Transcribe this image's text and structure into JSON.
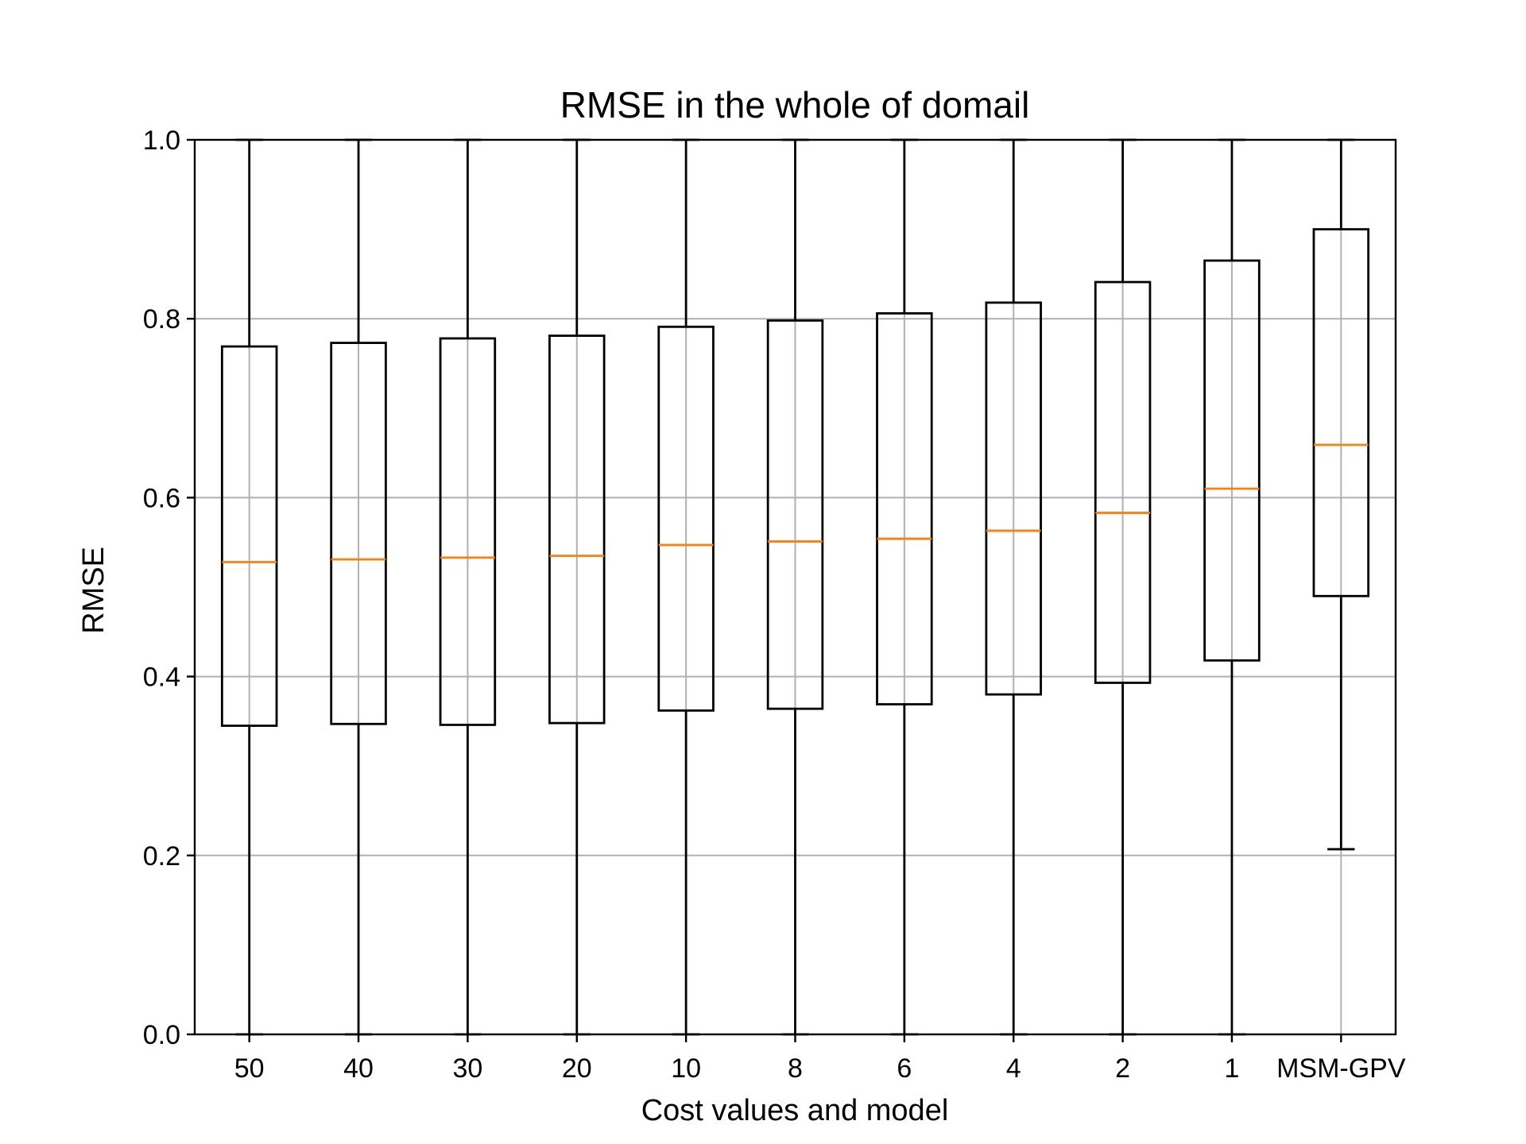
{
  "chart_data": {
    "type": "box",
    "title": "RMSE in the whole of domail",
    "xlabel": "Cost values and model",
    "ylabel": "RMSE",
    "ylim": [
      0.0,
      1.0
    ],
    "yticks": [
      "0.0",
      "0.2",
      "0.4",
      "0.6",
      "0.8",
      "1.0"
    ],
    "grid": true,
    "categories": [
      "50",
      "40",
      "30",
      "20",
      "10",
      "8",
      "6",
      "4",
      "2",
      "1",
      "MSM-GPV"
    ],
    "boxes": [
      {
        "label": "50",
        "whislo": 0.0,
        "q1": 0.345,
        "median": 0.528,
        "q3": 0.769,
        "whishi": 1.0
      },
      {
        "label": "40",
        "whislo": 0.0,
        "q1": 0.347,
        "median": 0.531,
        "q3": 0.773,
        "whishi": 1.0
      },
      {
        "label": "30",
        "whislo": 0.0,
        "q1": 0.346,
        "median": 0.533,
        "q3": 0.778,
        "whishi": 1.0
      },
      {
        "label": "20",
        "whislo": 0.0,
        "q1": 0.348,
        "median": 0.535,
        "q3": 0.781,
        "whishi": 1.0
      },
      {
        "label": "10",
        "whislo": 0.0,
        "q1": 0.362,
        "median": 0.547,
        "q3": 0.791,
        "whishi": 1.0
      },
      {
        "label": "8",
        "whislo": 0.0,
        "q1": 0.364,
        "median": 0.551,
        "q3": 0.798,
        "whishi": 1.0
      },
      {
        "label": "6",
        "whislo": 0.0,
        "q1": 0.369,
        "median": 0.554,
        "q3": 0.806,
        "whishi": 1.0
      },
      {
        "label": "4",
        "whislo": 0.0,
        "q1": 0.38,
        "median": 0.563,
        "q3": 0.818,
        "whishi": 1.0
      },
      {
        "label": "2",
        "whislo": 0.0,
        "q1": 0.393,
        "median": 0.583,
        "q3": 0.841,
        "whishi": 1.0
      },
      {
        "label": "1",
        "whislo": 0.0,
        "q1": 0.418,
        "median": 0.61,
        "q3": 0.865,
        "whishi": 1.0
      },
      {
        "label": "MSM-GPV",
        "whislo": 0.207,
        "q1": 0.49,
        "median": 0.659,
        "q3": 0.9,
        "whishi": 1.0
      }
    ],
    "colors": {
      "box": "#000000",
      "median": "#ff7f0e",
      "grid": "#b0b0b0"
    }
  }
}
